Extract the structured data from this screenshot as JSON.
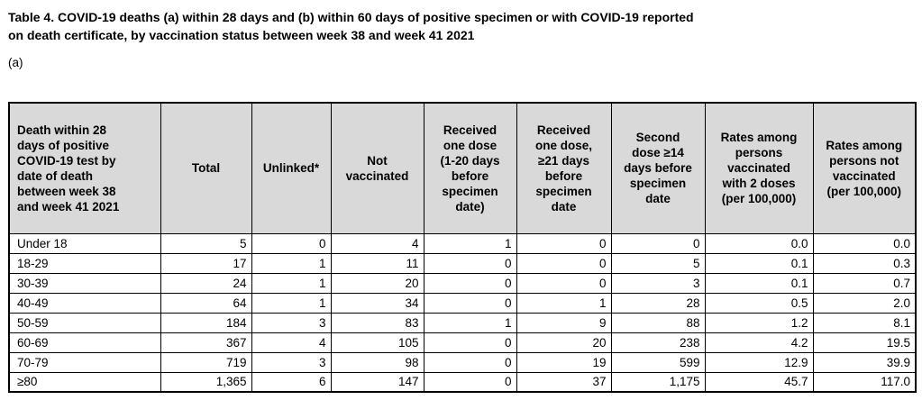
{
  "page": {
    "title": "Table 4. COVID-19 deaths (a) within 28 days and (b) within 60 days of positive specimen or with COVID-19 reported\non death certificate, by vaccination status between week 38 and week 41 2021",
    "section_label": "(a)"
  },
  "table": {
    "columns": [
      "Death within 28\ndays of positive\nCOVID-19 test by\ndate of death\nbetween week 38\nand week 41 2021",
      "Total",
      "Unlinked*",
      "Not\nvaccinated",
      "Received\none dose\n(1-20 days\nbefore\nspecimen\ndate)",
      "Received\none dose,\n≥21 days\nbefore\nspecimen\ndate",
      "Second\ndose ≥14\ndays before\nspecimen\ndate",
      "Rates among\npersons\nvaccinated\nwith 2 doses\n(per 100,000)",
      "Rates among\npersons not\nvaccinated\n(per 100,000)"
    ],
    "rows": [
      [
        "Under 18",
        "5",
        "0",
        "4",
        "1",
        "0",
        "0",
        "0.0",
        "0.0"
      ],
      [
        "18-29",
        "17",
        "1",
        "11",
        "0",
        "0",
        "5",
        "0.1",
        "0.3"
      ],
      [
        "30-39",
        "24",
        "1",
        "20",
        "0",
        "0",
        "3",
        "0.1",
        "0.7"
      ],
      [
        "40-49",
        "64",
        "1",
        "34",
        "0",
        "1",
        "28",
        "0.5",
        "2.0"
      ],
      [
        "50-59",
        "184",
        "3",
        "83",
        "1",
        "9",
        "88",
        "1.2",
        "8.1"
      ],
      [
        "60-69",
        "367",
        "4",
        "105",
        "0",
        "20",
        "238",
        "4.2",
        "19.5"
      ],
      [
        "70-79",
        "719",
        "3",
        "98",
        "0",
        "19",
        "599",
        "12.9",
        "39.9"
      ],
      [
        "≥80",
        "1,365",
        "6",
        "147",
        "0",
        "37",
        "1,175",
        "45.7",
        "117.0"
      ]
    ]
  },
  "colors": {
    "header_bg": "#d9d9d9",
    "border": "#000000",
    "page_bg": "#ffffff",
    "text": "#000000"
  }
}
